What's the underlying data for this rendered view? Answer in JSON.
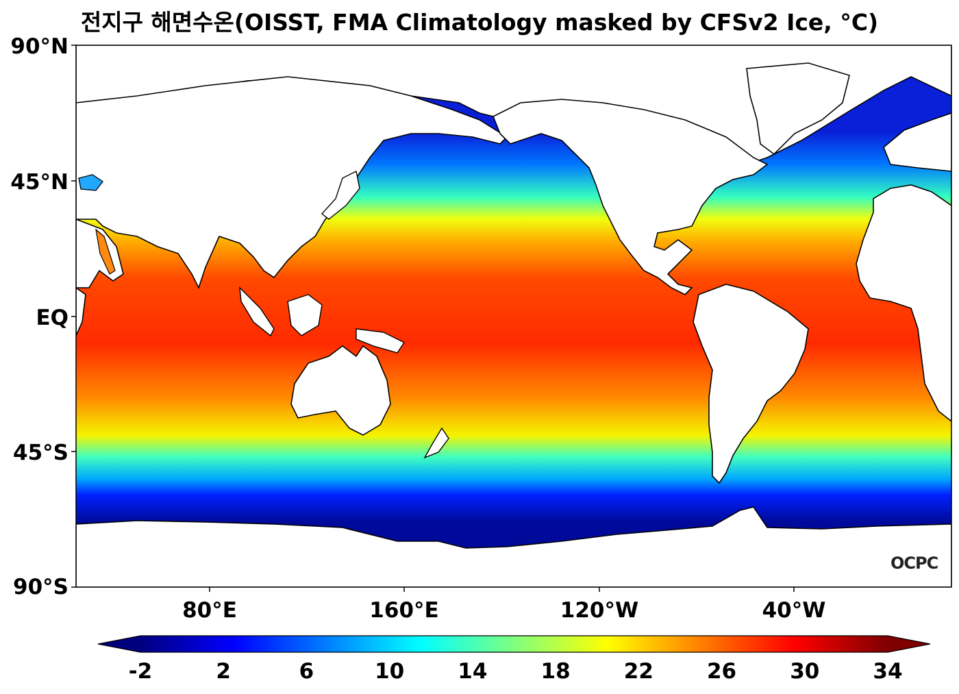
{
  "title": "전지구 해면수온(OISST, FMA Climatology masked by CFSv2 Ice, °C)",
  "map": {
    "lat_labels": [
      "90°N",
      "45°N",
      "EQ",
      "45°S",
      "90°S"
    ],
    "lon_labels": [
      "80°E",
      "160°E",
      "120°W",
      "40°W"
    ],
    "logo": "OCPC"
  },
  "colorbar": {
    "min": -2,
    "max": 34,
    "tick_labels": [
      "-2",
      "2",
      "6",
      "10",
      "14",
      "18",
      "22",
      "26",
      "30",
      "34"
    ],
    "extend": "both",
    "colors": [
      "#00007f",
      "#0000ff",
      "#007fff",
      "#00ffff",
      "#7fff7f",
      "#ffff00",
      "#ff7f00",
      "#ff0000",
      "#7f0000"
    ]
  },
  "colors": {
    "land": "#ffffff",
    "coastline": "#000000"
  }
}
